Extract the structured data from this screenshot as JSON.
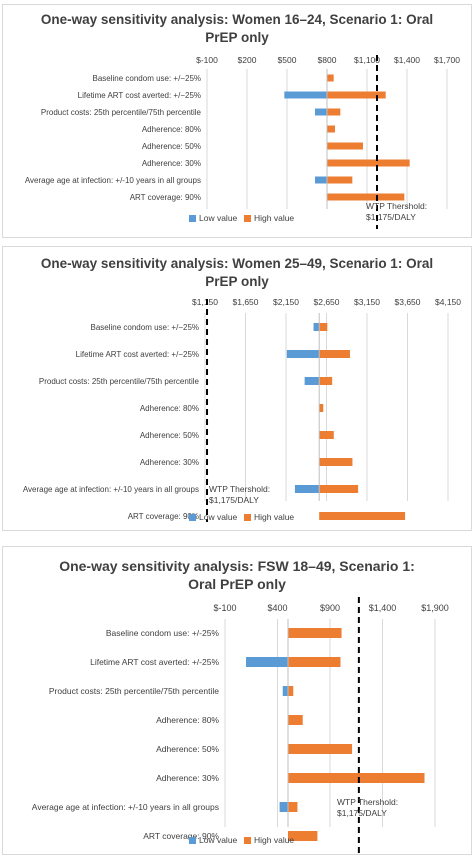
{
  "chart_data": [
    {
      "type": "bar",
      "orientation": "horizontal",
      "stacked_tornado": true,
      "title_line1": "One-way sensitivity analysis: Women 16–24, Scenario 1: Oral",
      "title_line2": "PrEP only",
      "base_value": 800,
      "xlim": [
        -100,
        1700
      ],
      "xticks": [
        "$-100",
        "$200",
        "$500",
        "$800",
        "$1,100",
        "$1,400",
        "$1,700"
      ],
      "tick_values": [
        -100,
        200,
        500,
        800,
        1100,
        1400,
        1700
      ],
      "categories": [
        "Baseline condom use: +/−25%",
        "Lifetime ART cost averted: +/−25%",
        "Product costs: 25th percentile/75th percentile",
        "Adherence: 80%",
        "Adherence: 50%",
        "Adherence: 30%",
        "Average age at infection: +/-10 years in all groups",
        "ART coverage: 90%"
      ],
      "series": [
        {
          "name": "Low value",
          "color": "#5b9bd5",
          "values": [
            800,
            480,
            710,
            800,
            800,
            800,
            710,
            800
          ]
        },
        {
          "name": "High value",
          "color": "#ed7d31",
          "values": [
            850,
            1240,
            900,
            860,
            1070,
            1420,
            990,
            1380
          ]
        }
      ],
      "threshold": {
        "value": 1175,
        "label_line1": "WTP Thershold:",
        "label_line2": "$1,175/DALY"
      },
      "legend_position": "bottom-left",
      "grid": true
    },
    {
      "type": "bar",
      "orientation": "horizontal",
      "stacked_tornado": true,
      "title_line1": "One-way sensitivity analysis: Women 25–49, Scenario 1: Oral",
      "title_line2": "PrEP only",
      "base_value": 2560,
      "xlim": [
        1150,
        4150
      ],
      "xticks": [
        "$1,150",
        "$1,650",
        "$2,150",
        "$2,650",
        "$3,150",
        "$3,650",
        "$4,150"
      ],
      "tick_values": [
        1150,
        1650,
        2150,
        2650,
        3150,
        3650,
        4150
      ],
      "categories": [
        "Baseline condom use: +/−25%",
        "Lifetime ART cost averted: +/−25%",
        "Product costs: 25th percentile/75th percentile",
        "Adherence: 80%",
        "Adherence: 50%",
        "Adherence: 30%",
        "Average age at infection: +/-10 years in all groups",
        "ART coverage: 90%"
      ],
      "series": [
        {
          "name": "Low value",
          "color": "#5b9bd5",
          "values": [
            2490,
            2160,
            2380,
            2560,
            2560,
            2560,
            2260,
            2560
          ]
        },
        {
          "name": "High value",
          "color": "#ed7d31",
          "values": [
            2660,
            2940,
            2720,
            2610,
            2740,
            2970,
            3040,
            3620
          ]
        }
      ],
      "threshold": {
        "value": 1175,
        "label_line1": "WTP Thershold:",
        "label_line2": "$1,175/DALY"
      },
      "legend_position": "bottom-left",
      "grid": true
    },
    {
      "type": "bar",
      "orientation": "horizontal",
      "stacked_tornado": true,
      "title_line1": "One-way sensitivity analysis: FSW 18–49, Scenario 1:",
      "title_line2": "Oral PrEP only",
      "base_value": 500,
      "xlim": [
        -100,
        1900
      ],
      "xticks": [
        "$-100",
        "$400",
        "$900",
        "$1,400",
        "$1,900"
      ],
      "tick_values": [
        -100,
        400,
        900,
        1400,
        1900
      ],
      "categories": [
        "Baseline condom use: +/-25%",
        "Lifetime ART cost averted: +/-25%",
        "Product costs: 25th percentile/75th percentile",
        "Adherence: 80%",
        "Adherence: 50%",
        "Adherence: 30%",
        "Average age at infection: +/-10 years in all groups",
        "ART coverage: 90%"
      ],
      "series": [
        {
          "name": "Low value",
          "color": "#5b9bd5",
          "values": [
            500,
            100,
            450,
            500,
            500,
            500,
            420,
            500
          ]
        },
        {
          "name": "High value",
          "color": "#ed7d31",
          "values": [
            1010,
            1000,
            550,
            640,
            1110,
            1800,
            590,
            780
          ]
        }
      ],
      "threshold": {
        "value": 1175,
        "label_line1": "WTP Thershold:",
        "label_line2": "$1,175/DALY"
      },
      "legend_position": "bottom-left",
      "grid": true
    }
  ]
}
